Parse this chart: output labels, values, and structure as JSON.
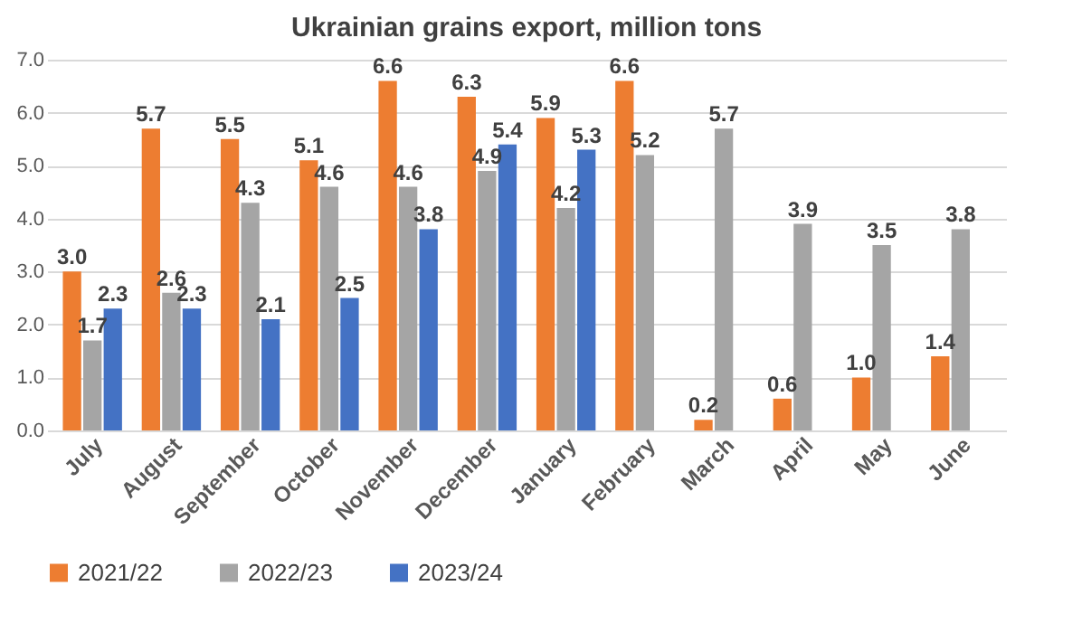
{
  "chart_data": {
    "type": "bar",
    "title": "Ukrainian grains export, million tons",
    "categories": [
      "July",
      "August",
      "September",
      "October",
      "November",
      "December",
      "January",
      "February",
      "March",
      "April",
      "May",
      "June"
    ],
    "series": [
      {
        "name": "2021/22",
        "color": "#ed7d31",
        "values": [
          3.0,
          5.7,
          5.5,
          5.1,
          6.6,
          6.3,
          5.9,
          6.6,
          0.2,
          0.6,
          1.0,
          1.4
        ],
        "value_labels": [
          "3.0",
          "5.7",
          "5.5",
          "5.1",
          "6.6",
          "6.3",
          "5.9",
          "6.6",
          "0.2",
          "0.6",
          "1.0",
          "1.4"
        ]
      },
      {
        "name": "2022/23",
        "color": "#a5a5a5",
        "values": [
          1.7,
          2.6,
          4.3,
          4.6,
          4.6,
          4.9,
          4.2,
          5.2,
          5.7,
          3.9,
          3.5,
          3.8
        ],
        "value_labels": [
          "1.7",
          "2.6",
          "4.3",
          "4.6",
          "4.6",
          "4.9",
          "4.2",
          "5.2",
          "5.7",
          "3.9",
          "3.5",
          "3.8"
        ]
      },
      {
        "name": "2023/24",
        "color": "#4472c4",
        "values": [
          2.3,
          2.3,
          2.1,
          2.5,
          3.8,
          5.4,
          5.3,
          null,
          null,
          null,
          null,
          null
        ],
        "value_labels": [
          "2.3",
          "2.3",
          "2.1",
          "2.5",
          "3.8",
          "5.4",
          "5.3",
          null,
          null,
          null,
          null,
          null
        ]
      }
    ],
    "ylim": [
      0,
      7
    ],
    "yticks": [
      {
        "value": 0,
        "label": "0.0"
      },
      {
        "value": 1,
        "label": "1.0"
      },
      {
        "value": 2,
        "label": "2.0"
      },
      {
        "value": 3,
        "label": "3.0"
      },
      {
        "value": 4,
        "label": "4.0"
      },
      {
        "value": 5,
        "label": "5.0"
      },
      {
        "value": 6,
        "label": "6.0"
      },
      {
        "value": 7,
        "label": "7.0"
      }
    ],
    "grid": "y",
    "legend": "bottom"
  }
}
